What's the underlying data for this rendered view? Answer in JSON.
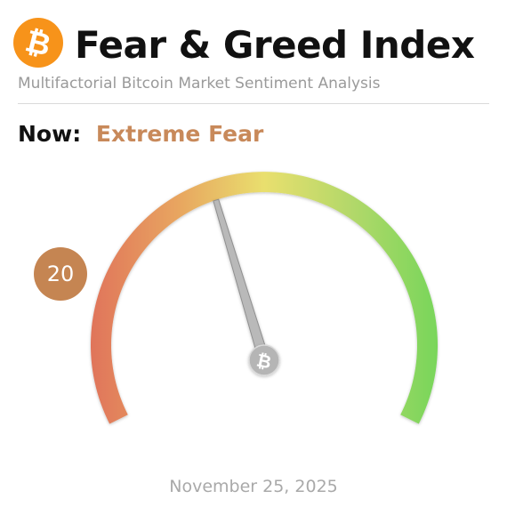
{
  "header": {
    "title": "Fear & Greed Index",
    "subtitle": "Multifactorial Bitcoin Market Sentiment Analysis",
    "logo_icon": "bitcoin-icon",
    "logo_color": "#f7931a"
  },
  "status": {
    "now_label": "Now:",
    "sentiment": "Extreme Fear",
    "sentiment_color": "#c8895a"
  },
  "gauge": {
    "value": "20",
    "min": 0,
    "max": 100,
    "bubble_color": "#c58552",
    "colors": [
      "#e0745a",
      "#e8a560",
      "#e9df6e",
      "#b3d86a",
      "#78d65a"
    ],
    "pivot_icon": "bitcoin-icon"
  },
  "footer": {
    "date": "November 25, 2025"
  }
}
